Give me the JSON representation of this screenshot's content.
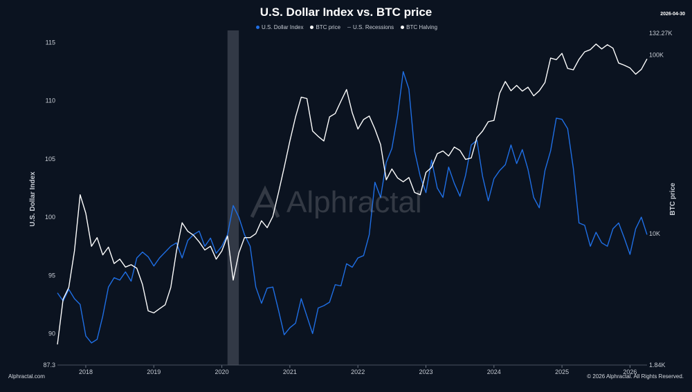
{
  "header": {
    "title": "U.S. Dollar Index vs. BTC price",
    "date": "2026-04-30"
  },
  "legend": {
    "items": [
      {
        "label": "U.S. Dollar Index",
        "color": "#1f6fe5",
        "icon": "dot"
      },
      {
        "label": "BTC price",
        "color": "#ffffff",
        "icon": "dot"
      },
      {
        "label": "U.S. Recessions",
        "color": "#6b7380",
        "icon": "line"
      },
      {
        "label": "BTC Halving",
        "color": "#ffffff",
        "icon": "dot"
      }
    ]
  },
  "footer": {
    "source": "Alphractal.com",
    "copyright": "© 2026 Alphractal. All Rights Reserved."
  },
  "watermark": {
    "text": "Alphractal"
  },
  "chart_data": {
    "type": "line",
    "title": "U.S. Dollar Index vs. BTC price",
    "ylabel": "U.S. Dollar Index",
    "y2label": "BTC price",
    "x_ticks": [
      "2018",
      "2019",
      "2020",
      "2021",
      "2022",
      "2023",
      "2024",
      "2025",
      "2026"
    ],
    "x_range": [
      "2017-08",
      "2026-04"
    ],
    "y_left": {
      "range": [
        87.3,
        115.8
      ],
      "ticks": [
        87.3,
        90,
        95,
        100,
        105,
        110,
        115
      ]
    },
    "y_right": {
      "scale": "log",
      "range": [
        1840,
        132270
      ],
      "tick_labels": [
        {
          "value": 1840,
          "label": "1.84K"
        },
        {
          "value": 10000,
          "label": "10K"
        },
        {
          "value": 100000,
          "label": "100K"
        },
        {
          "value": 132270,
          "label": "132.27K"
        }
      ]
    },
    "recessions": [
      {
        "start": "2020-02",
        "end": "2020-04"
      }
    ],
    "series": [
      {
        "name": "U.S. Dollar Index",
        "axis": "left",
        "color": "#1f6fe5",
        "x": [
          "2017-08",
          "2017-09",
          "2017-10",
          "2017-11",
          "2017-12",
          "2018-01",
          "2018-02",
          "2018-03",
          "2018-04",
          "2018-05",
          "2018-06",
          "2018-07",
          "2018-08",
          "2018-09",
          "2018-10",
          "2018-11",
          "2018-12",
          "2019-01",
          "2019-02",
          "2019-03",
          "2019-04",
          "2019-05",
          "2019-06",
          "2019-07",
          "2019-08",
          "2019-09",
          "2019-10",
          "2019-11",
          "2019-12",
          "2020-01",
          "2020-02",
          "2020-03",
          "2020-04",
          "2020-05",
          "2020-06",
          "2020-07",
          "2020-08",
          "2020-09",
          "2020-10",
          "2020-11",
          "2020-12",
          "2021-01",
          "2021-02",
          "2021-03",
          "2021-04",
          "2021-05",
          "2021-06",
          "2021-07",
          "2021-08",
          "2021-09",
          "2021-10",
          "2021-11",
          "2021-12",
          "2022-01",
          "2022-02",
          "2022-03",
          "2022-04",
          "2022-05",
          "2022-06",
          "2022-07",
          "2022-08",
          "2022-09",
          "2022-10",
          "2022-11",
          "2022-12",
          "2023-01",
          "2023-02",
          "2023-03",
          "2023-04",
          "2023-05",
          "2023-06",
          "2023-07",
          "2023-08",
          "2023-09",
          "2023-10",
          "2023-11",
          "2023-12",
          "2024-01",
          "2024-02",
          "2024-03",
          "2024-04",
          "2024-05",
          "2024-06",
          "2024-07",
          "2024-08",
          "2024-09",
          "2024-10",
          "2024-11",
          "2024-12",
          "2025-01",
          "2025-02",
          "2025-03",
          "2025-04",
          "2025-05",
          "2025-06",
          "2025-07",
          "2025-08",
          "2025-09",
          "2025-10",
          "2025-11",
          "2025-12",
          "2026-01",
          "2026-02",
          "2026-03",
          "2026-04"
        ],
        "values": [
          93.5,
          92.8,
          93.8,
          93.0,
          92.5,
          89.8,
          89.2,
          89.5,
          91.5,
          94.0,
          94.8,
          94.6,
          95.3,
          94.5,
          96.5,
          97.0,
          96.6,
          95.8,
          96.5,
          97.0,
          97.5,
          97.8,
          96.5,
          98.0,
          98.5,
          98.8,
          97.5,
          98.2,
          96.9,
          97.5,
          98.5,
          101.0,
          100.0,
          98.5,
          97.5,
          94.0,
          92.6,
          93.9,
          94.0,
          92.0,
          89.9,
          90.5,
          90.9,
          93.0,
          91.5,
          90.0,
          92.2,
          92.4,
          92.7,
          94.2,
          94.1,
          96.0,
          95.7,
          96.5,
          96.7,
          98.5,
          103.0,
          101.7,
          104.7,
          105.9,
          108.7,
          112.5,
          111.0,
          105.7,
          103.5,
          102.1,
          104.9,
          102.5,
          101.7,
          104.3,
          102.9,
          101.8,
          103.6,
          106.2,
          106.6,
          103.5,
          101.4,
          103.3,
          104.0,
          104.5,
          106.2,
          104.6,
          105.8,
          104.1,
          101.7,
          100.8,
          104.0,
          105.7,
          108.5,
          108.4,
          107.6,
          104.2,
          99.5,
          99.3,
          97.5,
          98.7,
          97.8,
          97.5,
          99.0,
          99.5,
          98.2,
          96.8,
          99.0,
          100.0,
          98.5
        ]
      },
      {
        "name": "BTC price",
        "axis": "right",
        "color": "#ffffff",
        "x": [
          "2017-08",
          "2017-09",
          "2017-10",
          "2017-11",
          "2017-12",
          "2018-01",
          "2018-02",
          "2018-03",
          "2018-04",
          "2018-05",
          "2018-06",
          "2018-07",
          "2018-08",
          "2018-09",
          "2018-10",
          "2018-11",
          "2018-12",
          "2019-01",
          "2019-02",
          "2019-03",
          "2019-04",
          "2019-05",
          "2019-06",
          "2019-07",
          "2019-08",
          "2019-09",
          "2019-10",
          "2019-11",
          "2019-12",
          "2020-01",
          "2020-02",
          "2020-03",
          "2020-04",
          "2020-05",
          "2020-06",
          "2020-07",
          "2020-08",
          "2020-09",
          "2020-10",
          "2020-11",
          "2020-12",
          "2021-01",
          "2021-02",
          "2021-03",
          "2021-04",
          "2021-05",
          "2021-06",
          "2021-07",
          "2021-08",
          "2021-09",
          "2021-10",
          "2021-11",
          "2021-12",
          "2022-01",
          "2022-02",
          "2022-03",
          "2022-04",
          "2022-05",
          "2022-06",
          "2022-07",
          "2022-08",
          "2022-09",
          "2022-10",
          "2022-11",
          "2022-12",
          "2023-01",
          "2023-02",
          "2023-03",
          "2023-04",
          "2023-05",
          "2023-06",
          "2023-07",
          "2023-08",
          "2023-09",
          "2023-10",
          "2023-11",
          "2023-12",
          "2024-01",
          "2024-02",
          "2024-03",
          "2024-04",
          "2024-05",
          "2024-06",
          "2024-07",
          "2024-08",
          "2024-09",
          "2024-10",
          "2024-11",
          "2024-12",
          "2025-01",
          "2025-02",
          "2025-03",
          "2025-04",
          "2025-05",
          "2025-06",
          "2025-07",
          "2025-08",
          "2025-09",
          "2025-10",
          "2025-11",
          "2025-12",
          "2026-01",
          "2026-02",
          "2026-03",
          "2026-04"
        ],
        "values": [
          2400,
          4300,
          5000,
          8000,
          16500,
          13000,
          8500,
          9500,
          7600,
          8400,
          6800,
          7200,
          6500,
          6700,
          6400,
          5200,
          3700,
          3600,
          3800,
          4000,
          5000,
          8000,
          11500,
          10300,
          9800,
          9000,
          8100,
          8500,
          7200,
          8000,
          9700,
          5500,
          7800,
          9500,
          9500,
          10000,
          11800,
          10800,
          12500,
          17000,
          23500,
          33000,
          45000,
          58000,
          57000,
          37500,
          35000,
          33000,
          45000,
          47000,
          55000,
          64000,
          47500,
          38500,
          43500,
          45500,
          38500,
          31500,
          20000,
          23000,
          20500,
          19500,
          20600,
          17000,
          16500,
          22000,
          23500,
          28000,
          29000,
          27200,
          30500,
          29200,
          26000,
          26500,
          34500,
          37500,
          42300,
          43000,
          61000,
          71000,
          63000,
          67500,
          62700,
          66000,
          59000,
          63000,
          70000,
          96000,
          94000,
          102000,
          84000,
          82500,
          94500,
          104000,
          107000,
          115000,
          108000,
          114000,
          109000,
          90000,
          87500,
          84500,
          78000,
          83000,
          95000
        ]
      }
    ]
  }
}
